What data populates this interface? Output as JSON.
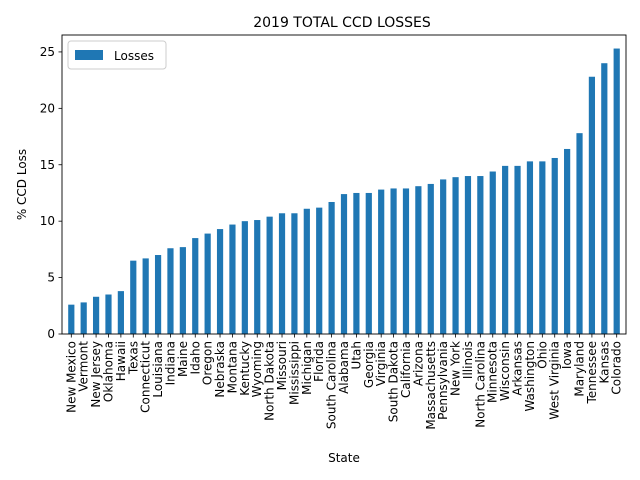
{
  "chart_data": {
    "type": "bar",
    "title": "2019 TOTAL CCD LOSSES",
    "xlabel": "State",
    "ylabel": "% CCD Loss",
    "ylim": [
      0,
      26.5
    ],
    "yticks": [
      0,
      5,
      10,
      15,
      20,
      25
    ],
    "grid": false,
    "legend_position": "top-left",
    "bar_color": "#1f77b4",
    "series": [
      {
        "name": "Losses",
        "values": [
          2.6,
          2.8,
          3.3,
          3.5,
          3.8,
          6.5,
          6.7,
          7.0,
          7.6,
          7.7,
          8.5,
          8.9,
          9.3,
          9.7,
          10.0,
          10.1,
          10.4,
          10.7,
          10.7,
          11.1,
          11.2,
          11.7,
          12.4,
          12.5,
          12.5,
          12.8,
          12.9,
          12.9,
          13.1,
          13.3,
          13.7,
          13.9,
          14.0,
          14.0,
          14.4,
          14.9,
          14.9,
          15.3,
          15.3,
          15.6,
          16.4,
          17.8,
          22.8,
          24.0,
          25.3
        ]
      }
    ],
    "categories": [
      "New Mexico",
      "Vermont",
      "New Jersey",
      "Oklahoma",
      "Hawaii",
      "Texas",
      "Connecticut",
      "Louisiana",
      "Indiana",
      "Maine",
      "Idaho",
      "Oregon",
      "Nebraska",
      "Montana",
      "Kentucky",
      "Wyoming",
      "North Dakota",
      "Missouri",
      "Mississippi",
      "Michigan",
      "Florida",
      "South Carolina",
      "Alabama",
      "Utah",
      "Georgia",
      "Virginia",
      "South Dakota",
      "California",
      "Arizona",
      "Massachusetts",
      "Pennsylvania",
      "New York",
      "Illinois",
      "North Carolina",
      "Minnesota",
      "Wisconsin",
      "Arkansas",
      "Washington",
      "Ohio",
      "West Virginia",
      "Iowa",
      "Maryland",
      "Tennessee",
      "Kansas",
      "Colorado"
    ]
  }
}
